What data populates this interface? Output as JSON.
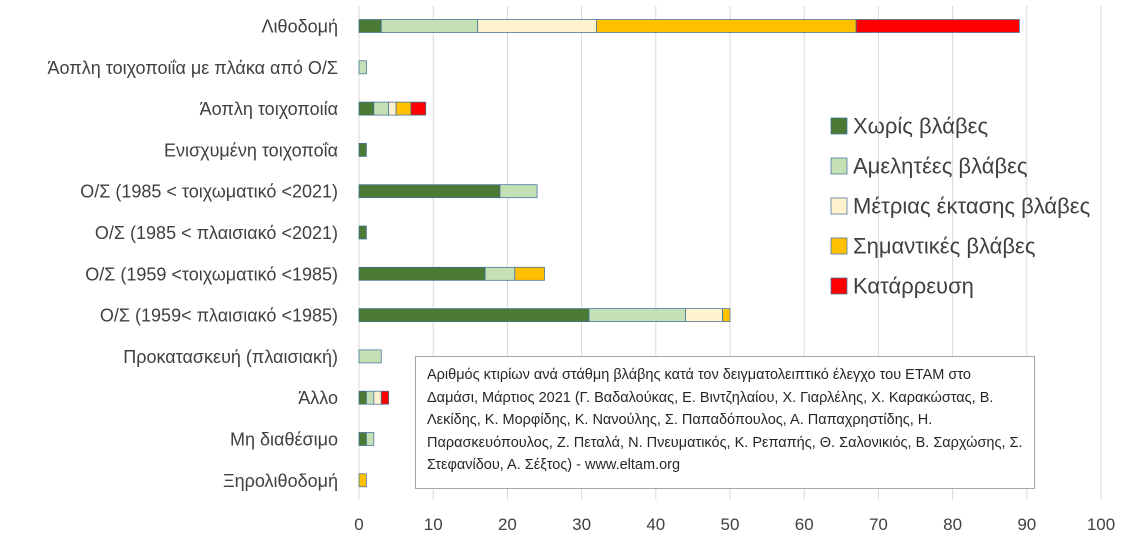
{
  "chart_data": {
    "type": "bar",
    "orientation": "horizontal",
    "stacked": true,
    "title": "",
    "xlabel": "",
    "ylabel": "",
    "xlim": [
      0,
      100
    ],
    "x_ticks": [
      0,
      10,
      20,
      30,
      40,
      50,
      60,
      70,
      80,
      90,
      100
    ],
    "grid": "vertical",
    "legend_position": "right",
    "categories": [
      "Λιθοδομή",
      "Άοπλη τοιχοποιΐα με πλάκα από Ο/Σ",
      "Άοπλη τοιχοποιία",
      "Ενισχυμένη τοιχοποΐα",
      "Ο/Σ (1985 < τοιχωματικό <2021)",
      "Ο/Σ (1985 < πλαισιακό <2021)",
      "Ο/Σ (1959 <τοιχωματικό <1985)",
      "Ο/Σ (1959< πλαισιακό <1985)",
      "Προκατασκευή (πλαισιακή)",
      "Άλλο",
      "Μη διαθέσιμο",
      "Ξηρολιθοδομή"
    ],
    "series": [
      {
        "name": "Χωρίς βλάβες",
        "color": "#4a7a34",
        "values": [
          3,
          0,
          2,
          1,
          19,
          1,
          17,
          31,
          0,
          1,
          1,
          0
        ]
      },
      {
        "name": "Αμελητέες βλάβες",
        "color": "#c5e0b4",
        "values": [
          13,
          1,
          2,
          0,
          5,
          0,
          4,
          13,
          3,
          1,
          1,
          0
        ]
      },
      {
        "name": "Μέτριας έκτασης βλάβες",
        "color": "#fff2cc",
        "values": [
          16,
          0,
          1,
          0,
          0,
          0,
          0,
          5,
          0,
          1,
          0,
          0
        ]
      },
      {
        "name": "Σημαντικές βλάβες",
        "color": "#ffc000",
        "values": [
          35,
          0,
          2,
          0,
          0,
          0,
          4,
          1,
          0,
          0,
          0,
          1
        ]
      },
      {
        "name": "Κατάρρευση",
        "color": "#ff0000",
        "values": [
          22,
          0,
          2,
          0,
          0,
          0,
          0,
          0,
          0,
          1,
          0,
          0
        ]
      }
    ],
    "annotation": "Αριθμός κτιρίων ανά στάθμη βλάβης κατά τον δειγματολειπτικό έλεγχο του ΕΤΑΜ στο Δαμάσι, Μάρτιος 2021 (Γ. Βαδαλούκας, Ε. Βιντζηλαίου, Χ. Γιαρλέλης, Χ. Καρακώστας, Β. Λεκίδης, Κ. Μορφίδης, Κ. Νανούλης, Σ. Παπαδόπουλος, Α. Παπαχρηστίδης, Η. Παρασκευόπουλος, Ζ. Πεταλά, Ν. Πνευματικός, Κ. Ρεπαπής, Θ. Σαλονικιός, Β. Σαρχώσης, Σ. Στεφανίδου, Α. Σέξτος) - www.eltam.org"
  },
  "colors": {
    "gridline": "#d9d9d9",
    "bar_outline": "#41719c",
    "text": "#404040"
  }
}
